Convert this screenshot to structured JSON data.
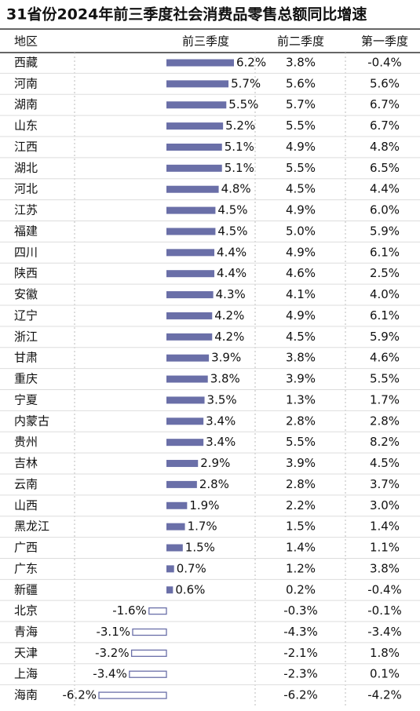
{
  "chart_data": {
    "type": "bar",
    "title": "31省份2024年前三季度社会消费品零售总额同比增速",
    "category_header": "地区",
    "categories": [
      "西藏",
      "河南",
      "湖南",
      "山东",
      "江西",
      "湖北",
      "河北",
      "江苏",
      "福建",
      "四川",
      "陕西",
      "安徽",
      "辽宁",
      "浙江",
      "甘肃",
      "重庆",
      "宁夏",
      "内蒙古",
      "贵州",
      "吉林",
      "云南",
      "山西",
      "黑龙江",
      "广西",
      "广东",
      "新疆",
      "北京",
      "青海",
      "天津",
      "上海",
      "海南"
    ],
    "series": [
      {
        "name": "前三季度",
        "color": "#6a6fa8",
        "values": [
          6.2,
          5.7,
          5.5,
          5.2,
          5.1,
          5.1,
          4.8,
          4.5,
          4.5,
          4.4,
          4.4,
          4.3,
          4.2,
          4.2,
          3.9,
          3.8,
          3.5,
          3.4,
          3.4,
          2.9,
          2.8,
          1.9,
          1.7,
          1.5,
          0.7,
          0.6,
          -1.6,
          -3.1,
          -3.2,
          -3.4,
          -6.2
        ],
        "value_labels": [
          "6.2%",
          "5.7%",
          "5.5%",
          "5.2%",
          "5.1%",
          "5.1%",
          "4.8%",
          "4.5%",
          "4.5%",
          "4.4%",
          "4.4%",
          "4.3%",
          "4.2%",
          "4.2%",
          "3.9%",
          "3.8%",
          "3.5%",
          "3.4%",
          "3.4%",
          "2.9%",
          "2.8%",
          "1.9%",
          "1.7%",
          "1.5%",
          "0.7%",
          "0.6%",
          "-1.6%",
          "-3.1%",
          "-3.2%",
          "-3.4%",
          "-6.2%"
        ]
      },
      {
        "name": "前二季度",
        "values": [
          3.8,
          5.6,
          5.7,
          5.5,
          4.9,
          5.5,
          4.5,
          4.9,
          5.0,
          4.9,
          4.6,
          4.1,
          4.9,
          4.5,
          3.8,
          3.9,
          1.3,
          2.8,
          5.5,
          3.9,
          2.8,
          2.2,
          1.5,
          1.4,
          1.2,
          0.2,
          -0.3,
          -4.3,
          -2.1,
          -2.3,
          -6.2
        ],
        "value_labels": [
          "3.8%",
          "5.6%",
          "5.7%",
          "5.5%",
          "4.9%",
          "5.5%",
          "4.5%",
          "4.9%",
          "5.0%",
          "4.9%",
          "4.6%",
          "4.1%",
          "4.9%",
          "4.5%",
          "3.8%",
          "3.9%",
          "1.3%",
          "2.8%",
          "5.5%",
          "3.9%",
          "2.8%",
          "2.2%",
          "1.5%",
          "1.4%",
          "1.2%",
          "0.2%",
          "-0.3%",
          "-4.3%",
          "-2.1%",
          "-2.3%",
          "-6.2%"
        ]
      },
      {
        "name": "第一季度",
        "values": [
          -0.4,
          5.6,
          6.7,
          6.7,
          4.8,
          6.5,
          4.4,
          6.0,
          5.9,
          6.1,
          2.5,
          4.0,
          6.1,
          5.9,
          4.6,
          5.5,
          1.7,
          2.8,
          8.2,
          4.5,
          3.7,
          3.0,
          1.4,
          1.1,
          3.8,
          -0.4,
          -0.1,
          -3.4,
          1.8,
          0.1,
          -4.2
        ],
        "value_labels": [
          "-0.4%",
          "5.6%",
          "6.7%",
          "6.7%",
          "4.8%",
          "6.5%",
          "4.4%",
          "6.0%",
          "5.9%",
          "6.1%",
          "2.5%",
          "4.0%",
          "6.1%",
          "5.9%",
          "4.6%",
          "5.5%",
          "1.7%",
          "2.8%",
          "8.2%",
          "4.5%",
          "3.7%",
          "3.0%",
          "1.4%",
          "1.1%",
          "3.8%",
          "-0.4%",
          "-0.1%",
          "-3.4%",
          "1.8%",
          "0.1%",
          "-4.2%"
        ]
      }
    ]
  }
}
